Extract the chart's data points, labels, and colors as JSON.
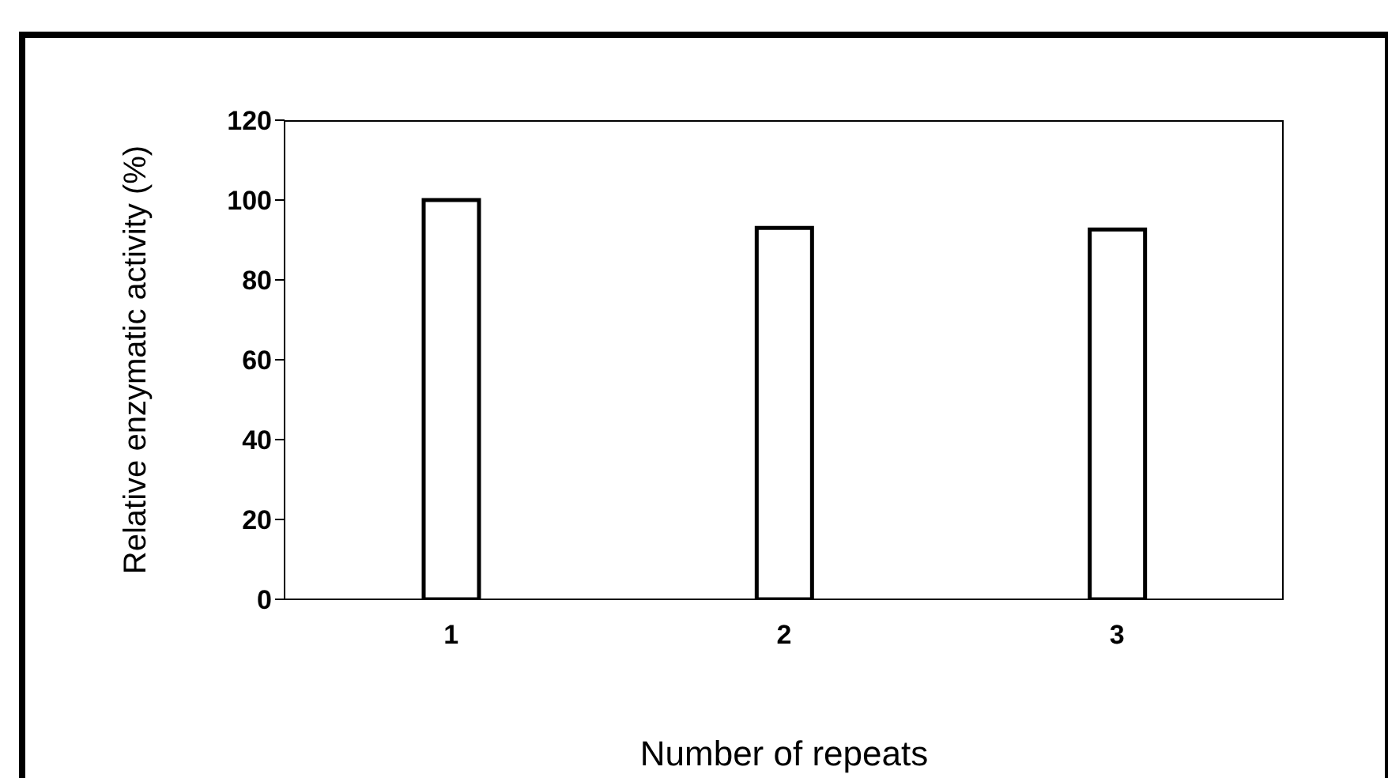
{
  "chart_data": {
    "type": "bar",
    "categories": [
      "1",
      "2",
      "3"
    ],
    "values": [
      100,
      93,
      92.6
    ],
    "color": "#ffffff",
    "ylim": [
      0,
      120
    ],
    "yticks": [
      0,
      20,
      40,
      60,
      80,
      100,
      120
    ],
    "xlabel": "Number of repeats",
    "ylabel": "Relative enzymatic activity (%)",
    "grid": false,
    "legend": false
  }
}
